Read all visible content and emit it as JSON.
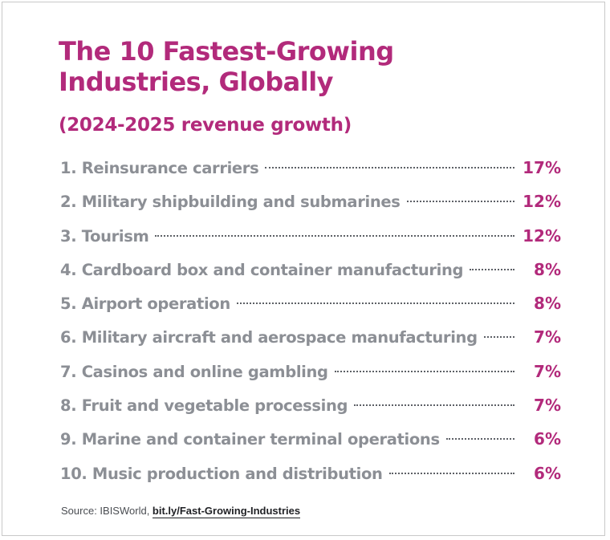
{
  "title_line1": "The 10 Fastest-Growing",
  "title_line2": "Industries, Globally",
  "subtitle": "(2024-2025 revenue growth)",
  "colors": {
    "accent": "#b22a7b",
    "label_gray": "#8c8f95",
    "text_dark": "#1f2024"
  },
  "chart_data": {
    "type": "table",
    "title": "The 10 Fastest-Growing Industries, Globally",
    "subtitle": "(2024-2025 revenue growth)",
    "unit": "%",
    "rows": [
      {
        "label": "1. Reinsurance carriers",
        "value": 17,
        "display": "17%"
      },
      {
        "label": "2. Military shipbuilding and submarines",
        "value": 12,
        "display": "12%"
      },
      {
        "label": "3. Tourism",
        "value": 12,
        "display": "12%"
      },
      {
        "label": "4. Cardboard box and container manufacturing",
        "value": 8,
        "display": "8%"
      },
      {
        "label": "5. Airport operation",
        "value": 8,
        "display": "8%"
      },
      {
        "label": "6. Military aircraft and aerospace manufacturing",
        "value": 7,
        "display": "7%"
      },
      {
        "label": "7. Casinos and online gambling",
        "value": 7,
        "display": "7%"
      },
      {
        "label": "8. Fruit and vegetable processing",
        "value": 7,
        "display": "7%"
      },
      {
        "label": "9. Marine and container terminal operations",
        "value": 6,
        "display": "6%"
      },
      {
        "label": "10. Music production and distribution",
        "value": 6,
        "display": "6%"
      }
    ]
  },
  "source": {
    "prefix": "Source: IBISWorld, ",
    "link": "bit.ly/Fast-Growing-Industries"
  }
}
